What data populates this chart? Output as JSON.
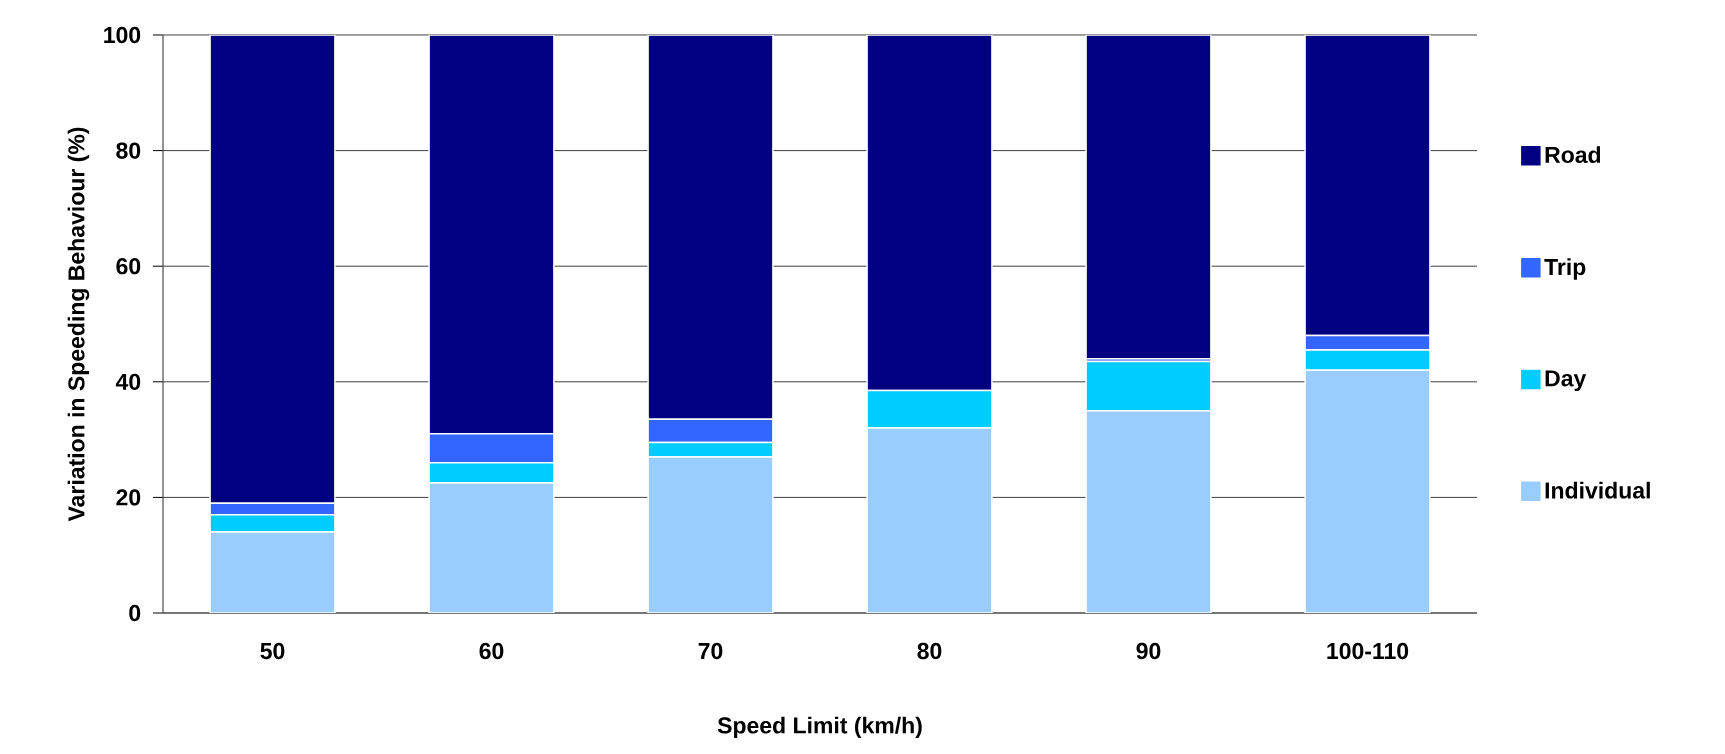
{
  "chart_data": {
    "type": "bar",
    "stacked": true,
    "xlabel": "Speed Limit (km/h)",
    "ylabel": "Variation in Speeding Behaviour (%)",
    "categories": [
      "50",
      "60",
      "70",
      "80",
      "90",
      "100-110"
    ],
    "series": [
      {
        "name": "Individual",
        "color": "#99ccff",
        "values": [
          14,
          22.5,
          27,
          32,
          35,
          42
        ]
      },
      {
        "name": "Day",
        "color": "#00ccff",
        "values": [
          3,
          3.5,
          2.5,
          6.5,
          8.5,
          3.5
        ]
      },
      {
        "name": "Trip",
        "color": "#3366ff",
        "values": [
          2,
          5,
          4,
          0,
          0.5,
          2.5
        ]
      },
      {
        "name": "Road",
        "color": "#000080",
        "values": [
          81,
          69,
          66.5,
          61.5,
          56,
          52
        ]
      }
    ],
    "ylim": [
      0,
      100
    ],
    "yticks": [
      0,
      20,
      40,
      60,
      80,
      100
    ],
    "grid": "y",
    "legend": "right"
  }
}
